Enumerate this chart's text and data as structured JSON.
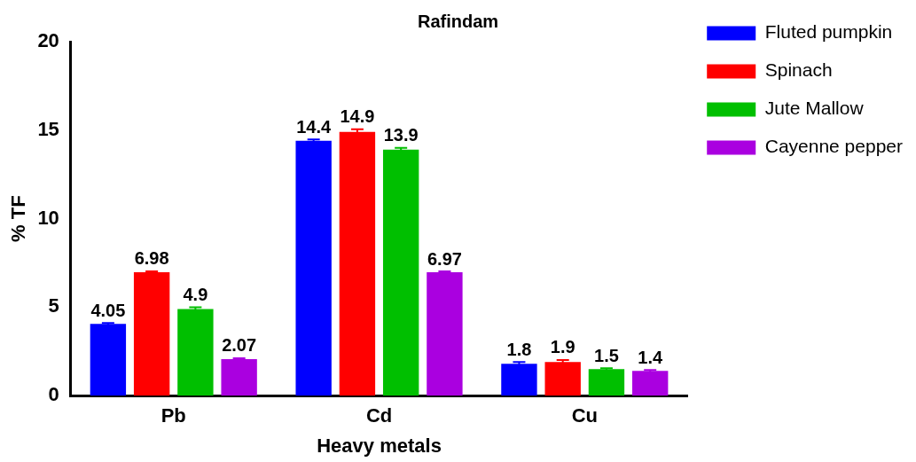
{
  "chart_data": {
    "type": "bar",
    "title": "Rafindam",
    "xlabel": "Heavy metals",
    "ylabel": "% TF",
    "categories": [
      "Pb",
      "Cd",
      "Cu"
    ],
    "series": [
      {
        "name": "Fluted pumpkin",
        "color": "#0000ff",
        "values": [
          4.05,
          14.4,
          1.8
        ],
        "errors": [
          0.05,
          0.08,
          0.1
        ]
      },
      {
        "name": "Spinach",
        "color": "#ff0000",
        "values": [
          6.98,
          14.9,
          1.9
        ],
        "errors": [
          0.05,
          0.15,
          0.12
        ]
      },
      {
        "name": "Jute Mallow",
        "color": "#00bf00",
        "values": [
          4.9,
          13.9,
          1.5
        ],
        "errors": [
          0.1,
          0.1,
          0.05
        ]
      },
      {
        "name": "Cayenne pepper",
        "color": "#aa00e0",
        "values": [
          2.07,
          6.97,
          1.4
        ],
        "errors": [
          0.05,
          0.05,
          0.05
        ]
      }
    ],
    "ylim": [
      0,
      20
    ],
    "yticks": [
      0,
      5,
      10,
      15,
      20
    ],
    "grid": false,
    "legend": "top right",
    "data_labels": true
  }
}
